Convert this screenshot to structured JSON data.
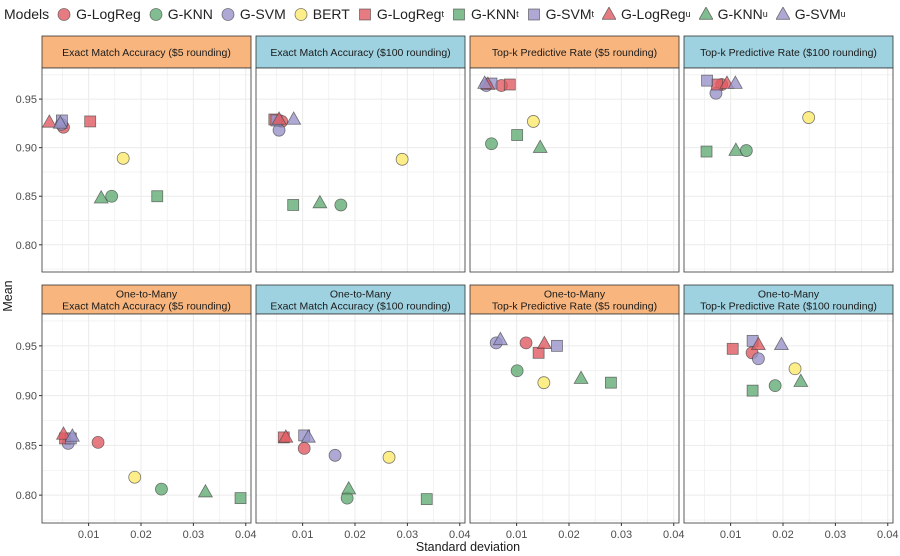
{
  "legend": {
    "title": "Models",
    "items": [
      {
        "label": "G-LogReg",
        "sub": "",
        "shape": "circle",
        "color": "#E05B63"
      },
      {
        "label": "G-KNN",
        "sub": "",
        "shape": "circle",
        "color": "#62AD74"
      },
      {
        "label": "G-SVM",
        "sub": "",
        "shape": "circle",
        "color": "#9893C9"
      },
      {
        "label": "BERT",
        "sub": "",
        "shape": "circle",
        "color": "#FCEA6C"
      },
      {
        "label": "G-LogReg",
        "sub": "t",
        "shape": "square",
        "color": "#E05B63"
      },
      {
        "label": "G-KNN",
        "sub": "t",
        "shape": "square",
        "color": "#62AD74"
      },
      {
        "label": "G-SVM",
        "sub": "t",
        "shape": "square",
        "color": "#9893C9"
      },
      {
        "label": "G-LogReg",
        "sub": "u",
        "shape": "triangle",
        "color": "#E05B63"
      },
      {
        "label": "G-KNN",
        "sub": "u",
        "shape": "triangle",
        "color": "#62AD74"
      },
      {
        "label": "G-SVM",
        "sub": "u",
        "shape": "triangle",
        "color": "#9893C9"
      }
    ]
  },
  "strip_colors": {
    "orange": "#F8B67E",
    "blue": "#9ED2E0"
  },
  "chart_data": {
    "type": "scatter",
    "xlabel": "Standard deviation",
    "ylabel": "Mean",
    "xlim": [
      0.0011,
      0.041
    ],
    "ylim": [
      0.772,
      0.982
    ],
    "xticks": [
      0.01,
      0.02,
      0.03,
      0.04
    ],
    "xtick_labels": [
      "0.01",
      "0.02",
      "0.03",
      "0.04"
    ],
    "yticks": [
      0.95,
      0.9,
      0.85,
      0.8
    ],
    "ytick_labels": [
      "0.95",
      "0.90",
      "0.85",
      "0.80"
    ],
    "grid": true,
    "legend_position": "top",
    "series_order": [
      "G-LogReg",
      "G-KNN",
      "G-SVM",
      "BERT",
      "G-LogReg_t",
      "G-KNN_t",
      "G-SVM_t",
      "G-LogReg_u",
      "G-KNN_u",
      "G-SVM_u"
    ],
    "panels": [
      {
        "title": [
          "Exact Match Accuracy ($5 rounding)"
        ],
        "strip": "orange",
        "points": [
          [
            0.0052,
            0.921
          ],
          [
            0.0144,
            0.85
          ],
          [
            0.0048,
            0.924
          ],
          [
            0.0166,
            0.889
          ],
          [
            0.0103,
            0.927
          ],
          [
            0.0231,
            0.85
          ],
          [
            0.0049,
            0.928
          ],
          [
            0.0025,
            0.926
          ],
          [
            0.0124,
            0.848
          ],
          [
            0.0046,
            0.925
          ]
        ]
      },
      {
        "title": [
          "Exact Match Accuracy ($100 rounding)"
        ],
        "strip": "blue",
        "points": [
          [
            0.006,
            0.927
          ],
          [
            0.0173,
            0.841
          ],
          [
            0.0055,
            0.918
          ],
          [
            0.029,
            0.888
          ],
          [
            0.0046,
            0.929
          ],
          [
            0.0082,
            0.841
          ],
          [
            0.005,
            0.928
          ],
          [
            0.0055,
            0.929
          ],
          [
            0.0133,
            0.843
          ],
          [
            0.0083,
            0.929
          ]
        ]
      },
      {
        "title": [
          "Top-k Predictive Rate ($5 rounding)"
        ],
        "strip": "orange",
        "points": [
          [
            0.0071,
            0.964
          ],
          [
            0.0052,
            0.904
          ],
          [
            0.0042,
            0.964
          ],
          [
            0.0132,
            0.927
          ],
          [
            0.0087,
            0.965
          ],
          [
            0.0101,
            0.913
          ],
          [
            0.0052,
            0.966
          ],
          [
            0.0045,
            0.965
          ],
          [
            0.0145,
            0.9
          ],
          [
            0.0039,
            0.966
          ]
        ]
      },
      {
        "title": [
          "Top-k Predictive Rate ($100 rounding)"
        ],
        "strip": "blue",
        "points": [
          [
            0.0083,
            0.965
          ],
          [
            0.013,
            0.897
          ],
          [
            0.0072,
            0.956
          ],
          [
            0.0249,
            0.931
          ],
          [
            0.0074,
            0.965
          ],
          [
            0.0054,
            0.896
          ],
          [
            0.0055,
            0.969
          ],
          [
            0.0093,
            0.966
          ],
          [
            0.011,
            0.897
          ],
          [
            0.0109,
            0.966
          ]
        ]
      },
      {
        "title": [
          "One-to-Many",
          "Exact Match Accuracy ($5 rounding)"
        ],
        "strip": "orange",
        "points": [
          [
            0.0118,
            0.853
          ],
          [
            0.0239,
            0.806
          ],
          [
            0.0061,
            0.852
          ],
          [
            0.0188,
            0.818
          ],
          [
            0.0055,
            0.857
          ],
          [
            0.039,
            0.797
          ],
          [
            0.0066,
            0.857
          ],
          [
            0.0052,
            0.861
          ],
          [
            0.0323,
            0.803
          ],
          [
            0.0069,
            0.859
          ]
        ]
      },
      {
        "title": [
          "One-to-Many",
          "Exact Match Accuracy ($100 rounding)"
        ],
        "strip": "blue",
        "points": [
          [
            0.0103,
            0.847
          ],
          [
            0.0185,
            0.797
          ],
          [
            0.0162,
            0.84
          ],
          [
            0.0265,
            0.838
          ],
          [
            0.0064,
            0.858
          ],
          [
            0.0337,
            0.796
          ],
          [
            0.0103,
            0.86
          ],
          [
            0.0068,
            0.858
          ],
          [
            0.0188,
            0.806
          ],
          [
            0.0111,
            0.858
          ]
        ]
      },
      {
        "title": [
          "One-to-Many",
          "Top-k Predictive Rate ($5 rounding)"
        ],
        "strip": "orange",
        "points": [
          [
            0.0118,
            0.953
          ],
          [
            0.0101,
            0.925
          ],
          [
            0.0061,
            0.953
          ],
          [
            0.0152,
            0.913
          ],
          [
            0.0142,
            0.943
          ],
          [
            0.028,
            0.913
          ],
          [
            0.0177,
            0.95
          ],
          [
            0.0153,
            0.952
          ],
          [
            0.0223,
            0.917
          ],
          [
            0.0069,
            0.956
          ]
        ]
      },
      {
        "title": [
          "One-to-Many",
          "Top-k Predictive Rate ($100 rounding)"
        ],
        "strip": "blue",
        "points": [
          [
            0.0141,
            0.943
          ],
          [
            0.0185,
            0.91
          ],
          [
            0.0153,
            0.937
          ],
          [
            0.0223,
            0.927
          ],
          [
            0.0104,
            0.947
          ],
          [
            0.0142,
            0.905
          ],
          [
            0.0142,
            0.955
          ],
          [
            0.0153,
            0.951
          ],
          [
            0.0234,
            0.914
          ],
          [
            0.0197,
            0.951
          ]
        ]
      }
    ]
  }
}
